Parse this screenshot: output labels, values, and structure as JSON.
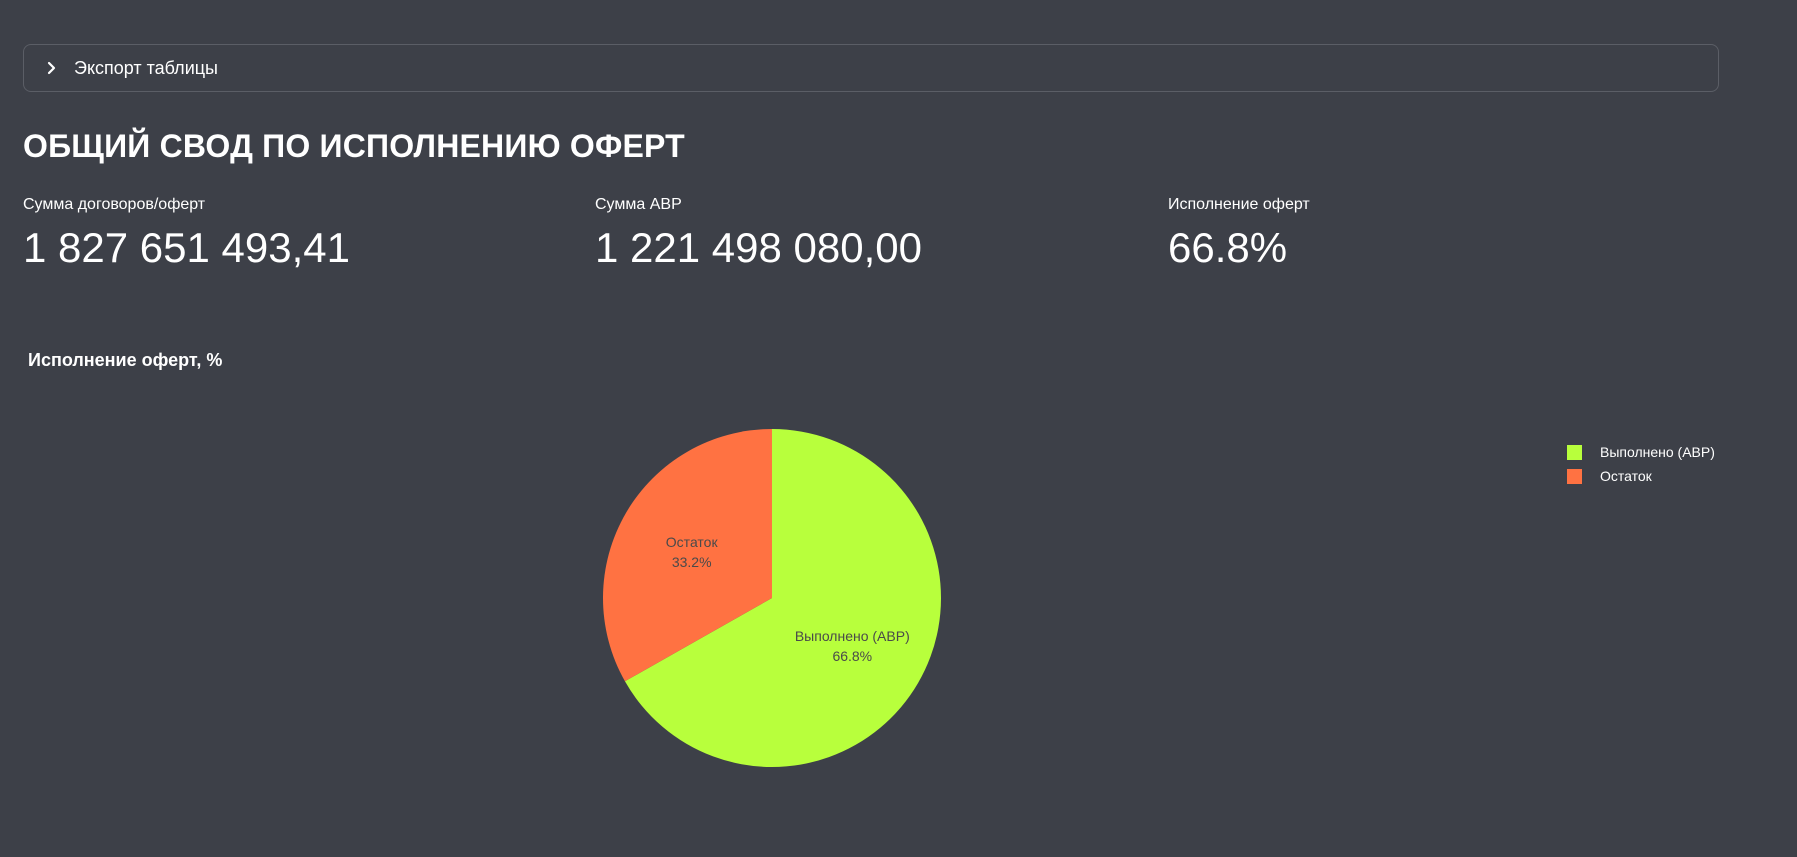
{
  "expander": {
    "label": "Экспорт таблицы",
    "icon": "chevron-right-icon"
  },
  "page_title": "ОБЩИЙ СВОД ПО ИСПОЛНЕНИЮ ОФЕРТ",
  "metrics": [
    {
      "label": "Сумма договоров/оферт",
      "value": "1 827 651 493,41"
    },
    {
      "label": "Сумма АВР",
      "value": "1 221 498 080,00"
    },
    {
      "label": "Исполнение оферт",
      "value": "66.8%"
    }
  ],
  "chart_data": {
    "type": "pie",
    "title": "Исполнение оферт, %",
    "legend_position": "top-right",
    "slices": [
      {
        "label": "Выполнено (АВР)",
        "value": 66.8,
        "text": "66.8%",
        "color": "#b8ff3c"
      },
      {
        "label": "Остаток",
        "value": 33.2,
        "text": "33.2%",
        "color": "#ff7242"
      }
    ]
  },
  "colors": {
    "background": "#3d4048",
    "border": "#5b5e66",
    "slice_label": "#4a4a4a"
  }
}
